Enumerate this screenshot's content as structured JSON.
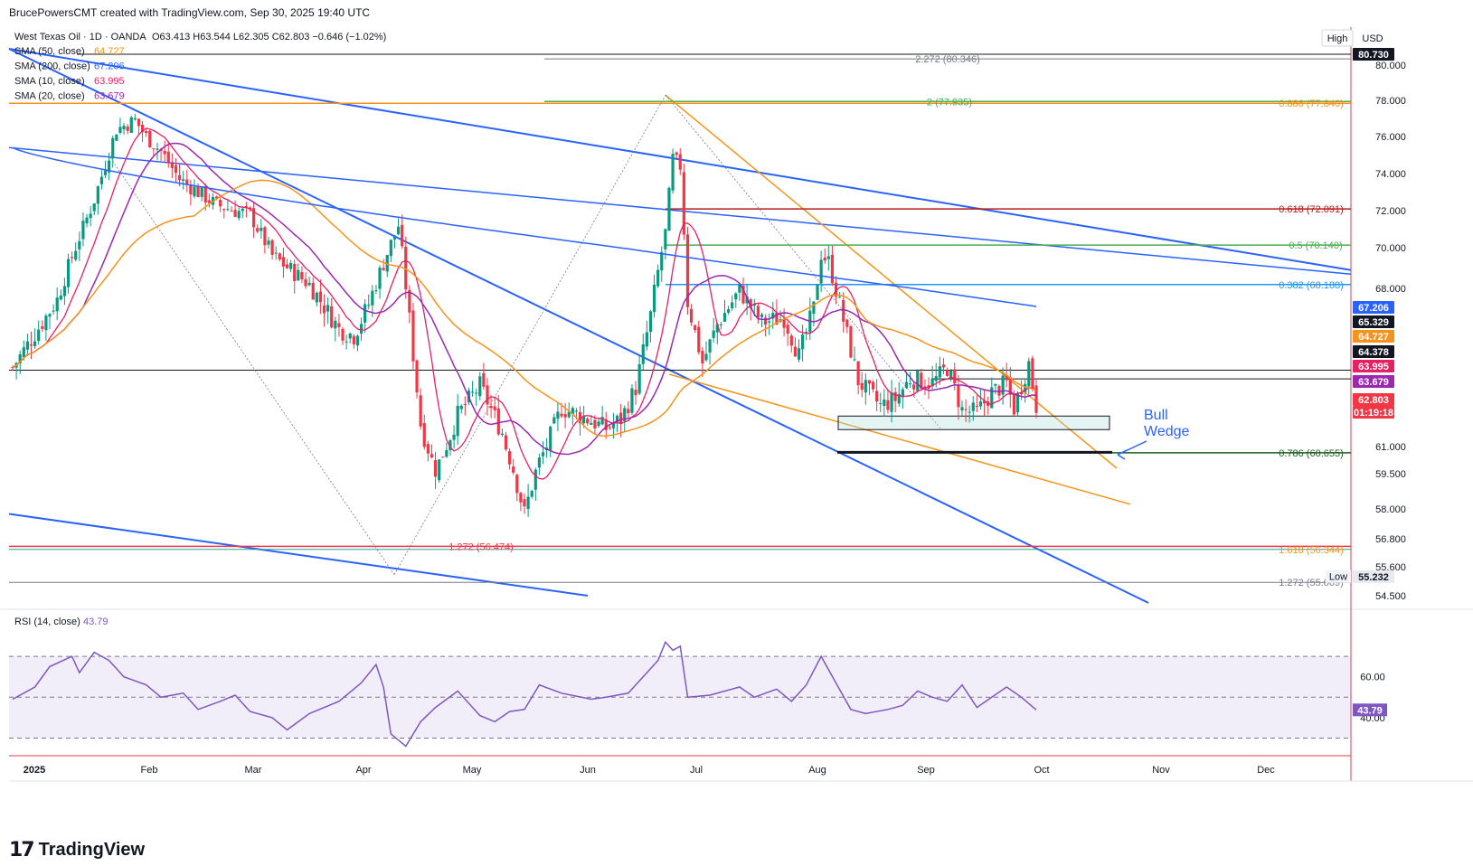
{
  "header": {
    "attribution": "BrucePowersCMT created with TradingView.com, Sep 30, 2025 19:40 UTC"
  },
  "legend": {
    "title": "West Texas Oil · 1D · OANDA",
    "ohlc": "O63.413  H63.544  L62.305  C62.803  −0.646 (−1.02%)",
    "ohlc_color": "#f23645",
    "indicators": [
      {
        "label": "SMA (50, close)",
        "value": "64.727",
        "color": "#f7931a"
      },
      {
        "label": "SMA (200, close)",
        "value": "67.206",
        "color": "#2962ff"
      },
      {
        "label": "SMA (10, close)",
        "value": "63.995",
        "color": "#e91e63"
      },
      {
        "label": "SMA (20, close)",
        "value": "63.679",
        "color": "#9c27b0"
      }
    ],
    "rsi": {
      "label": "RSI (14, close)",
      "value": "43.79",
      "color": "#7e57c2"
    }
  },
  "top_right": {
    "high_button": "High",
    "currency_button": "USD"
  },
  "annotation": {
    "line1": "Bull",
    "line2": "Wedge",
    "color": "#2962ff"
  },
  "footer": {
    "logo_mark": "17",
    "logo_text": "TradingView"
  },
  "chart_data": {
    "type": "candlestick",
    "symbol": "West Texas Oil",
    "interval": "1D",
    "exchange": "OANDA",
    "price_axis": {
      "ylim": [
        53.7,
        81.3
      ],
      "scale": "linear",
      "ticks": [
        "80.000",
        "78.000",
        "76.000",
        "74.000",
        "72.000",
        "70.000",
        "68.000",
        "61.000",
        "59.500",
        "58.000",
        "56.800",
        "55.600",
        "54.500"
      ]
    },
    "time_axis": {
      "labels": [
        "2025",
        "Feb",
        "Mar",
        "Apr",
        "May",
        "Jun",
        "Jul",
        "Aug",
        "Sep",
        "Oct",
        "Nov",
        "Dec"
      ]
    },
    "price_tags": [
      {
        "text": "80.730",
        "price": 80.73,
        "bg": "#131722",
        "fg": "#ffffff"
      },
      {
        "text": "67.206",
        "price": 67.206,
        "bg": "#2962ff",
        "fg": "#ffffff"
      },
      {
        "text": "65.329",
        "price": 65.329,
        "bg": "#131722",
        "fg": "#ffffff"
      },
      {
        "text": "64.727",
        "price": 64.727,
        "bg": "#f7931a",
        "fg": "#ffffff"
      },
      {
        "text": "64.378",
        "price": 64.378,
        "bg": "#131722",
        "fg": "#ffffff"
      },
      {
        "text": "63.995",
        "price": 63.995,
        "bg": "#e91e63",
        "fg": "#ffffff"
      },
      {
        "text": "63.679",
        "price": 63.679,
        "bg": "#9c27b0",
        "fg": "#ffffff"
      },
      {
        "text": "62.803",
        "price": 62.803,
        "bg": "#f23645",
        "fg": "#ffffff"
      },
      {
        "text": "01:19:18",
        "price": 62.2,
        "bg": "#f23645",
        "fg": "#ffffff"
      },
      {
        "text": "55.232",
        "price": 55.232,
        "bg": "#e8eaf0",
        "fg": "#131722"
      }
    ],
    "low_label": "Low",
    "fib_levels": [
      {
        "text": "2.272 (80.346)",
        "price": 80.346,
        "color": "#787b86"
      },
      {
        "text": "2 (77.935)",
        "price": 77.935,
        "color": "#4caf50"
      },
      {
        "text": "0.886 (77.840)",
        "price": 77.84,
        "color": "#f7931a"
      },
      {
        "text": "0.618 (72.091)",
        "price": 72.091,
        "color": "#b71c1c"
      },
      {
        "text": "0.5 (70.140)",
        "price": 70.14,
        "color": "#4caf50"
      },
      {
        "text": "0.382 (68.188)",
        "price": 68.188,
        "color": "#2196f3"
      },
      {
        "text": "0.786 (60.655)",
        "price": 60.655,
        "color": "#1b5e20"
      },
      {
        "text": "1.272 (56.474)",
        "price": 56.474,
        "color": "#f23645"
      },
      {
        "text": "1.618 (56.344)",
        "price": 56.344,
        "color": "#f7931a"
      },
      {
        "text": "1.272 (55.009)",
        "price": 55.009,
        "color": "#787b86"
      }
    ],
    "horizontal_levels": [
      64.378,
      63.995
    ],
    "rsi_axis": {
      "ylim": [
        24,
        86
      ],
      "ticks": [
        "60.00",
        "40.00"
      ],
      "bands": [
        30,
        50,
        70
      ]
    },
    "candle_close_path": [
      [
        0,
        64.5
      ],
      [
        12,
        67.5
      ],
      [
        22,
        72.6
      ],
      [
        28,
        76.4
      ],
      [
        33,
        76.9
      ],
      [
        36,
        76.0
      ],
      [
        40,
        75.2
      ],
      [
        45,
        73.7
      ],
      [
        50,
        73.0
      ],
      [
        55,
        72.3
      ],
      [
        60,
        72.0
      ],
      [
        64,
        71.8
      ],
      [
        70,
        69.6
      ],
      [
        80,
        68.2
      ],
      [
        88,
        66.2
      ],
      [
        92,
        65.9
      ],
      [
        96,
        67.3
      ],
      [
        104,
        71.2
      ],
      [
        110,
        62.0
      ],
      [
        114,
        59.7
      ],
      [
        120,
        62.4
      ],
      [
        126,
        63.7
      ],
      [
        132,
        61.6
      ],
      [
        138,
        57.8
      ],
      [
        142,
        60.2
      ],
      [
        148,
        62.7
      ],
      [
        154,
        62.3
      ],
      [
        160,
        61.8
      ],
      [
        164,
        62.2
      ],
      [
        168,
        63.6
      ],
      [
        172,
        66.8
      ],
      [
        176,
        70.8
      ],
      [
        178,
        74.8
      ],
      [
        180,
        74.4
      ],
      [
        182,
        67.4
      ],
      [
        186,
        64.7
      ],
      [
        190,
        66.4
      ],
      [
        196,
        67.9
      ],
      [
        202,
        66.5
      ],
      [
        208,
        66.7
      ],
      [
        212,
        65.0
      ],
      [
        216,
        67.1
      ],
      [
        218,
        69.7
      ],
      [
        220,
        69.3
      ],
      [
        224,
        66.6
      ],
      [
        228,
        63.9
      ],
      [
        234,
        62.8
      ],
      [
        238,
        63.1
      ],
      [
        242,
        64.0
      ],
      [
        248,
        63.8
      ],
      [
        252,
        64.5
      ],
      [
        256,
        62.6
      ],
      [
        260,
        62.5
      ],
      [
        264,
        63.4
      ],
      [
        268,
        63.8
      ],
      [
        270,
        62.7
      ],
      [
        274,
        64.7
      ],
      [
        276,
        62.8
      ]
    ],
    "rsi_path": [
      [
        0,
        49
      ],
      [
        6,
        55
      ],
      [
        10,
        65
      ],
      [
        16,
        70
      ],
      [
        18,
        62
      ],
      [
        22,
        72
      ],
      [
        26,
        68
      ],
      [
        30,
        60
      ],
      [
        36,
        56
      ],
      [
        40,
        50
      ],
      [
        46,
        52
      ],
      [
        50,
        44
      ],
      [
        56,
        48
      ],
      [
        60,
        51
      ],
      [
        64,
        43
      ],
      [
        70,
        40
      ],
      [
        74,
        34
      ],
      [
        80,
        42
      ],
      [
        88,
        48
      ],
      [
        94,
        57
      ],
      [
        98,
        66
      ],
      [
        100,
        55
      ],
      [
        102,
        32
      ],
      [
        106,
        26
      ],
      [
        110,
        38
      ],
      [
        114,
        45
      ],
      [
        120,
        53
      ],
      [
        126,
        41
      ],
      [
        130,
        38
      ],
      [
        134,
        43
      ],
      [
        138,
        44
      ],
      [
        142,
        56
      ],
      [
        148,
        52
      ],
      [
        156,
        49
      ],
      [
        160,
        50
      ],
      [
        166,
        52
      ],
      [
        170,
        60
      ],
      [
        174,
        68
      ],
      [
        176,
        77
      ],
      [
        178,
        73
      ],
      [
        180,
        75
      ],
      [
        182,
        50
      ],
      [
        188,
        51
      ],
      [
        196,
        55
      ],
      [
        200,
        50
      ],
      [
        206,
        54
      ],
      [
        210,
        48
      ],
      [
        214,
        56
      ],
      [
        218,
        70
      ],
      [
        222,
        57
      ],
      [
        226,
        44
      ],
      [
        230,
        42
      ],
      [
        236,
        44
      ],
      [
        240,
        46
      ],
      [
        244,
        53
      ],
      [
        248,
        50
      ],
      [
        252,
        48
      ],
      [
        256,
        56
      ],
      [
        260,
        45
      ],
      [
        264,
        50
      ],
      [
        268,
        55
      ],
      [
        272,
        50
      ],
      [
        276,
        43.8
      ]
    ]
  }
}
